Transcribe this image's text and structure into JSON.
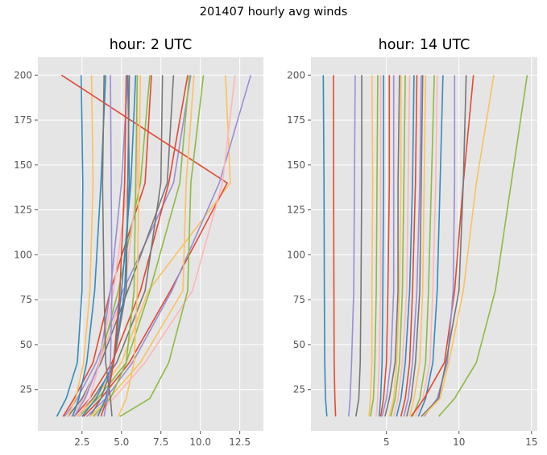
{
  "figure_title": "201407 hourly avg winds",
  "colors": [
    "#348ABD",
    "#E24A33",
    "#988ED5",
    "#777777",
    "#FBC15E",
    "#8EBA42",
    "#FFB5B8"
  ],
  "chart_data": [
    {
      "type": "line",
      "title": "hour: 2 UTC",
      "xlabel": "",
      "ylabel": "",
      "xlim": [
        -0.3,
        14.0
      ],
      "ylim": [
        2,
        210
      ],
      "xticks": [
        2.5,
        5.0,
        7.5,
        10.0,
        12.5
      ],
      "xtick_labels": [
        "2.5",
        "5.0",
        "7.5",
        "10.0",
        "12.5"
      ],
      "yticks": [
        25,
        50,
        75,
        100,
        125,
        150,
        175,
        200
      ],
      "ytick_labels": [
        "25",
        "50",
        "75",
        "100",
        "125",
        "150",
        "175",
        "200"
      ],
      "grid": true,
      "heights": [
        10,
        20,
        40,
        80,
        140,
        200
      ],
      "series": [
        {
          "values": [
            0.9,
            1.5,
            2.2,
            2.5,
            2.55,
            2.45
          ]
        },
        {
          "values": [
            1.3,
            2.0,
            3.2,
            4.3,
            6.5,
            6.9
          ]
        },
        {
          "values": [
            1.4,
            2.2,
            3.4,
            5.1,
            8.3,
            9.4
          ]
        },
        {
          "values": [
            1.6,
            2.5,
            3.7,
            5.4,
            7.9,
            8.3
          ]
        },
        {
          "values": [
            1.6,
            2.1,
            2.6,
            3.0,
            3.2,
            3.1
          ]
        },
        {
          "values": [
            1.8,
            2.6,
            3.6,
            4.8,
            6.2,
            6.8
          ]
        },
        {
          "values": [
            1.8,
            2.6,
            3.6,
            5.2,
            6.0,
            6.0
          ]
        },
        {
          "values": [
            1.9,
            2.3,
            2.8,
            3.3,
            3.7,
            4.0
          ]
        },
        {
          "values": [
            2.0,
            3.0,
            4.4,
            6.2,
            8.0,
            9.2
          ]
        },
        {
          "values": [
            2.0,
            2.7,
            3.6,
            4.3,
            5.0,
            5.4
          ]
        },
        {
          "values": [
            2.2,
            3.2,
            4.7,
            6.5,
            7.5,
            7.6
          ]
        },
        {
          "values": [
            2.2,
            3.3,
            5.0,
            6.7,
            11.9,
            11.6
          ]
        },
        {
          "values": [
            2.3,
            3.5,
            5.3,
            6.8,
            8.7,
            9.3
          ]
        },
        {
          "values": [
            2.3,
            3.0,
            3.6,
            4.5,
            5.4,
            5.5
          ]
        },
        {
          "values": [
            2.5,
            3.4,
            4.5,
            5.2,
            5.5,
            5.4
          ]
        },
        {
          "values": [
            2.6,
            3.7,
            5.5,
            8.1,
            11.7,
            1.2
          ]
        },
        {
          "values": [
            2.8,
            4.0,
            5.7,
            8.2,
            11.2,
            13.2
          ]
        },
        {
          "values": [
            3.0,
            3.7,
            4.5,
            5.3,
            5.4,
            5.5
          ]
        },
        {
          "values": [
            3.0,
            4.2,
            6.2,
            8.9,
            9.1,
            9.6
          ]
        },
        {
          "values": [
            3.2,
            4.3,
            5.3,
            5.8,
            5.9,
            6.0
          ]
        },
        {
          "values": [
            3.3,
            4.5,
            6.5,
            9.5,
            11.4,
            12.2
          ]
        },
        {
          "values": [
            3.5,
            4.0,
            4.5,
            5.0,
            5.6,
            5.9
          ]
        },
        {
          "values": [
            3.7,
            4.1,
            4.5,
            4.9,
            5.2,
            5.3
          ]
        },
        {
          "values": [
            3.9,
            4.1,
            4.3,
            4.4,
            4.35,
            4.3
          ]
        },
        {
          "values": [
            4.4,
            4.3,
            4.0,
            3.9,
            3.8,
            3.9
          ]
        },
        {
          "values": [
            4.8,
            5.3,
            5.8,
            6.0,
            6.1,
            6.2
          ]
        },
        {
          "values": [
            4.9,
            6.8,
            8.0,
            9.2,
            9.4,
            10.2
          ]
        }
      ]
    },
    {
      "type": "line",
      "title": "hour: 14 UTC",
      "xlabel": "",
      "ylabel": "",
      "xlim": [
        -0.2,
        15.4
      ],
      "ylim": [
        2,
        210
      ],
      "xticks": [
        5,
        10,
        15
      ],
      "xtick_labels": [
        "5",
        "10",
        "15"
      ],
      "yticks": [
        25,
        50,
        75,
        100,
        125,
        150,
        175,
        200
      ],
      "ytick_labels": [
        "25",
        "50",
        "75",
        "100",
        "125",
        "150",
        "175",
        "200"
      ],
      "grid": true,
      "heights": [
        10,
        20,
        40,
        80,
        140,
        200
      ],
      "series": [
        {
          "values": [
            0.9,
            0.8,
            0.75,
            0.72,
            0.7,
            0.65
          ]
        },
        {
          "values": [
            1.5,
            1.45,
            1.4,
            1.38,
            1.36,
            1.35
          ]
        },
        {
          "values": [
            2.4,
            2.5,
            2.6,
            2.75,
            2.8,
            2.85
          ]
        },
        {
          "values": [
            2.9,
            3.1,
            3.2,
            3.25,
            3.3,
            3.3
          ]
        },
        {
          "values": [
            3.8,
            3.9,
            4.0,
            4.0,
            4.05,
            4.0
          ]
        },
        {
          "values": [
            3.9,
            4.1,
            4.2,
            4.3,
            4.35,
            4.4
          ]
        },
        {
          "values": [
            4.3,
            4.4,
            4.5,
            4.6,
            4.6,
            4.6
          ]
        },
        {
          "values": [
            4.5,
            4.6,
            4.7,
            4.75,
            4.8,
            4.8
          ]
        },
        {
          "values": [
            4.6,
            4.8,
            5.0,
            5.1,
            5.2,
            5.2
          ]
        },
        {
          "values": [
            4.7,
            5.0,
            5.3,
            5.5,
            5.5,
            5.5
          ]
        },
        {
          "values": [
            4.9,
            5.2,
            5.6,
            5.8,
            5.8,
            5.9
          ]
        },
        {
          "values": [
            5.2,
            5.5,
            5.7,
            5.9,
            6.0,
            6.0
          ]
        },
        {
          "values": [
            5.3,
            5.6,
            5.9,
            6.1,
            6.2,
            6.3
          ]
        },
        {
          "values": [
            5.5,
            5.8,
            6.1,
            6.4,
            6.5,
            6.6
          ]
        },
        {
          "values": [
            5.7,
            6.0,
            6.3,
            6.6,
            6.8,
            6.9
          ]
        },
        {
          "values": [
            6.0,
            6.3,
            6.6,
            6.8,
            7.0,
            7.1
          ]
        },
        {
          "values": [
            6.2,
            6.5,
            6.8,
            7.1,
            7.3,
            7.4
          ]
        },
        {
          "values": [
            6.4,
            6.7,
            7.0,
            7.3,
            7.4,
            7.5
          ]
        },
        {
          "values": [
            6.6,
            6.9,
            7.3,
            7.5,
            7.6,
            7.7
          ]
        },
        {
          "values": [
            6.8,
            7.3,
            7.7,
            7.9,
            8.1,
            8.3
          ]
        },
        {
          "values": [
            7.0,
            7.5,
            8.0,
            8.2,
            8.4,
            8.5
          ]
        },
        {
          "values": [
            7.2,
            7.7,
            8.2,
            8.5,
            8.7,
            8.9
          ]
        },
        {
          "values": [
            6.7,
            7.6,
            9.0,
            9.7,
            10.3,
            11.0
          ]
        },
        {
          "values": [
            7.6,
            8.5,
            9.2,
            9.6,
            9.7,
            9.7
          ]
        },
        {
          "values": [
            7.4,
            8.6,
            9.1,
            10.0,
            10.3,
            10.5
          ]
        },
        {
          "values": [
            7.5,
            8.7,
            9.3,
            10.3,
            11.2,
            12.4
          ]
        },
        {
          "values": [
            8.6,
            9.7,
            11.2,
            12.5,
            13.6,
            14.7
          ]
        }
      ]
    }
  ]
}
